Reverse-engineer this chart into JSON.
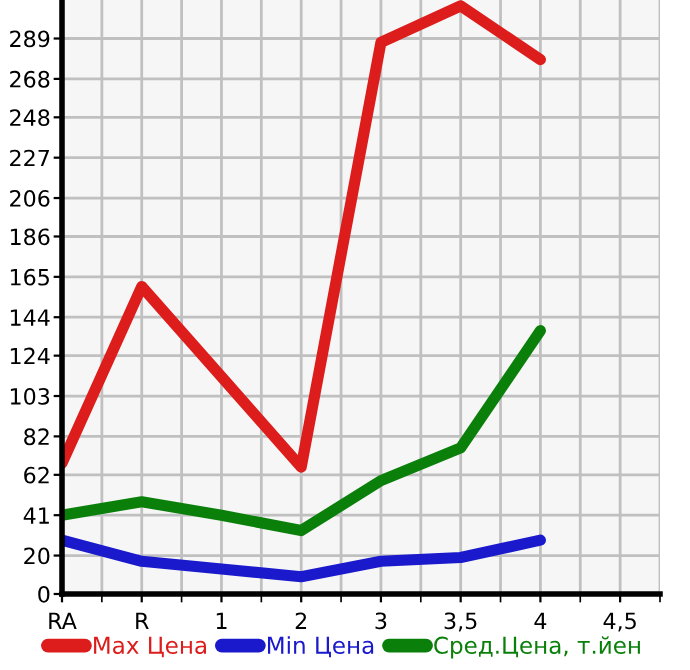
{
  "chart_data": {
    "type": "line",
    "categories": [
      "RA",
      "R",
      "1",
      "2",
      "3",
      "3,5",
      "4",
      "4,5"
    ],
    "series": [
      {
        "name": "Max Цена",
        "color": "#dd1c1c",
        "values": [
          68,
          160,
          113,
          66,
          287,
          306,
          278,
          null
        ]
      },
      {
        "name": "Min Цена",
        "color": "#1a1acc",
        "values": [
          28,
          17,
          13,
          9,
          17,
          19,
          28,
          null
        ]
      },
      {
        "name": "Сред.Цена, т.йен",
        "color": "#0a800a",
        "values": [
          41,
          48,
          41,
          33,
          59,
          76,
          137,
          null
        ]
      }
    ],
    "ylim": [
      0,
      309
    ],
    "yticks": [
      0,
      20,
      41,
      62,
      82,
      103,
      124,
      144,
      165,
      186,
      206,
      227,
      248,
      268,
      289
    ],
    "grid": true,
    "legend": "bottom",
    "marker": "none",
    "line_style": "solid"
  }
}
